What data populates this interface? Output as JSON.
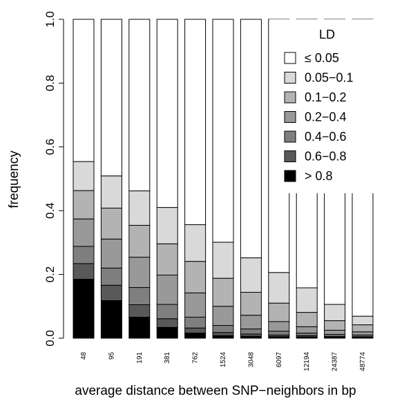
{
  "chart_data": {
    "type": "bar",
    "stacked": true,
    "xlabel": "average distance between SNP−neighbors in bp",
    "ylabel": "frequency",
    "ylim": [
      0,
      1
    ],
    "yticks": [
      0.0,
      0.2,
      0.4,
      0.6,
      0.8,
      1.0
    ],
    "ytick_labels": [
      "0.0",
      "0.2",
      "0.4",
      "0.6",
      "0.8",
      "1.0"
    ],
    "grid": false,
    "categories": [
      "48",
      "95",
      "191",
      "381",
      "762",
      "1524",
      "3048",
      "6097",
      "12194",
      "24387",
      "48774"
    ],
    "legend": {
      "title": "LD",
      "position": "top-right"
    },
    "series": [
      {
        "name": "> 0.8",
        "color": "#000000",
        "values": [
          0.185,
          0.118,
          0.066,
          0.034,
          0.016,
          0.008,
          0.006,
          0.005,
          0.004,
          0.003,
          0.002
        ]
      },
      {
        "name": "0.6−0.8",
        "color": "#595959",
        "values": [
          0.049,
          0.048,
          0.039,
          0.027,
          0.016,
          0.01,
          0.007,
          0.005,
          0.004,
          0.003,
          0.003
        ]
      },
      {
        "name": "0.4−0.6",
        "color": "#7f7f7f",
        "values": [
          0.054,
          0.054,
          0.054,
          0.045,
          0.034,
          0.022,
          0.016,
          0.012,
          0.008,
          0.006,
          0.005
        ]
      },
      {
        "name": "0.2−0.4",
        "color": "#999999",
        "values": [
          0.086,
          0.091,
          0.095,
          0.092,
          0.076,
          0.06,
          0.043,
          0.03,
          0.02,
          0.013,
          0.01
        ]
      },
      {
        "name": "0.1−0.2",
        "color": "#b3b3b3",
        "values": [
          0.089,
          0.097,
          0.1,
          0.098,
          0.099,
          0.088,
          0.072,
          0.058,
          0.045,
          0.03,
          0.022
        ]
      },
      {
        "name": "0.05−0.1",
        "color": "#d9d9d9",
        "values": [
          0.091,
          0.101,
          0.108,
          0.114,
          0.115,
          0.113,
          0.108,
          0.096,
          0.077,
          0.051,
          0.027
        ]
      },
      {
        "name": "≤ 0.05",
        "color": "#ffffff",
        "values": [
          0.446,
          0.491,
          0.538,
          0.59,
          0.644,
          0.699,
          0.748,
          0.794,
          0.842,
          0.894,
          0.931
        ]
      }
    ]
  }
}
